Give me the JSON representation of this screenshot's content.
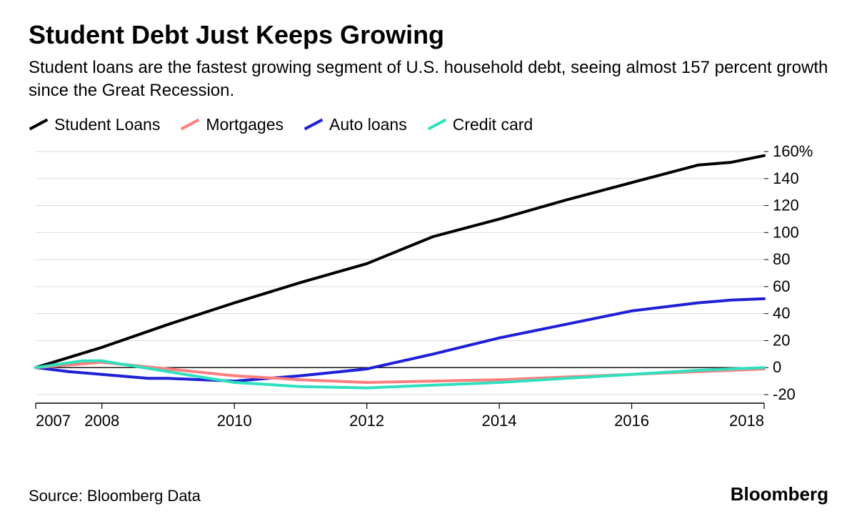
{
  "header": {
    "title": "Student Debt Just Keeps Growing",
    "subtitle": "Student loans are the fastest growing segment of U.S. household debt, seeing almost 157 percent growth since the Great Recession."
  },
  "legend": {
    "items": [
      {
        "label": "Student Loans",
        "color": "#000000"
      },
      {
        "label": "Mortgages",
        "color": "#ff7f7f"
      },
      {
        "label": "Auto loans",
        "color": "#1f1fd6"
      },
      {
        "label": "Credit card",
        "color": "#2fe0bf"
      }
    ]
  },
  "chart": {
    "type": "line",
    "background_color": "#ffffff",
    "grid_color": "#d9d9d9",
    "axis_color": "#000000",
    "tick_color": "#000000",
    "line_width": 4,
    "axis_line_width": 1,
    "tick_font_size": 22,
    "x": {
      "min": 2007,
      "max": 2018,
      "ticks": [
        2007,
        2008,
        2010,
        2012,
        2014,
        2016,
        2018
      ]
    },
    "y": {
      "min": -20,
      "max": 160,
      "ticks": [
        -20,
        0,
        20,
        40,
        60,
        80,
        100,
        120,
        140,
        160
      ],
      "top_tick_suffix": "%"
    },
    "series": [
      {
        "name": "Student Loans",
        "color": "#000000",
        "points": [
          [
            2007,
            0
          ],
          [
            2008,
            15
          ],
          [
            2009,
            32
          ],
          [
            2010,
            48
          ],
          [
            2011,
            63
          ],
          [
            2012,
            77
          ],
          [
            2013,
            97
          ],
          [
            2014,
            110
          ],
          [
            2015,
            124
          ],
          [
            2016,
            137
          ],
          [
            2017,
            150
          ],
          [
            2017.5,
            152
          ],
          [
            2018,
            157
          ]
        ]
      },
      {
        "name": "Auto loans",
        "color": "#1f1fd6",
        "points": [
          [
            2007,
            0
          ],
          [
            2007.5,
            -3
          ],
          [
            2008,
            -5
          ],
          [
            2008.7,
            -8
          ],
          [
            2009,
            -8
          ],
          [
            2010,
            -10
          ],
          [
            2011,
            -6
          ],
          [
            2012,
            -1
          ],
          [
            2013,
            10
          ],
          [
            2014,
            22
          ],
          [
            2015,
            32
          ],
          [
            2016,
            42
          ],
          [
            2017,
            48
          ],
          [
            2017.5,
            50
          ],
          [
            2018,
            51
          ]
        ]
      },
      {
        "name": "Mortgages",
        "color": "#ff7f7f",
        "points": [
          [
            2007,
            0
          ],
          [
            2008,
            4
          ],
          [
            2009,
            -1
          ],
          [
            2010,
            -6
          ],
          [
            2011,
            -9
          ],
          [
            2012,
            -11
          ],
          [
            2013,
            -10
          ],
          [
            2014,
            -9
          ],
          [
            2015,
            -7
          ],
          [
            2016,
            -5
          ],
          [
            2017,
            -3
          ],
          [
            2018,
            -1
          ]
        ]
      },
      {
        "name": "Credit card",
        "color": "#2fe0bf",
        "points": [
          [
            2007,
            0
          ],
          [
            2007.7,
            5
          ],
          [
            2008,
            5
          ],
          [
            2009,
            -3
          ],
          [
            2010,
            -11
          ],
          [
            2011,
            -14
          ],
          [
            2012,
            -15
          ],
          [
            2013,
            -13
          ],
          [
            2014,
            -11
          ],
          [
            2015,
            -8
          ],
          [
            2016,
            -5
          ],
          [
            2017,
            -2
          ],
          [
            2018,
            0
          ]
        ]
      }
    ]
  },
  "footer": {
    "source": "Source: Bloomberg Data",
    "brand": "Bloomberg"
  }
}
